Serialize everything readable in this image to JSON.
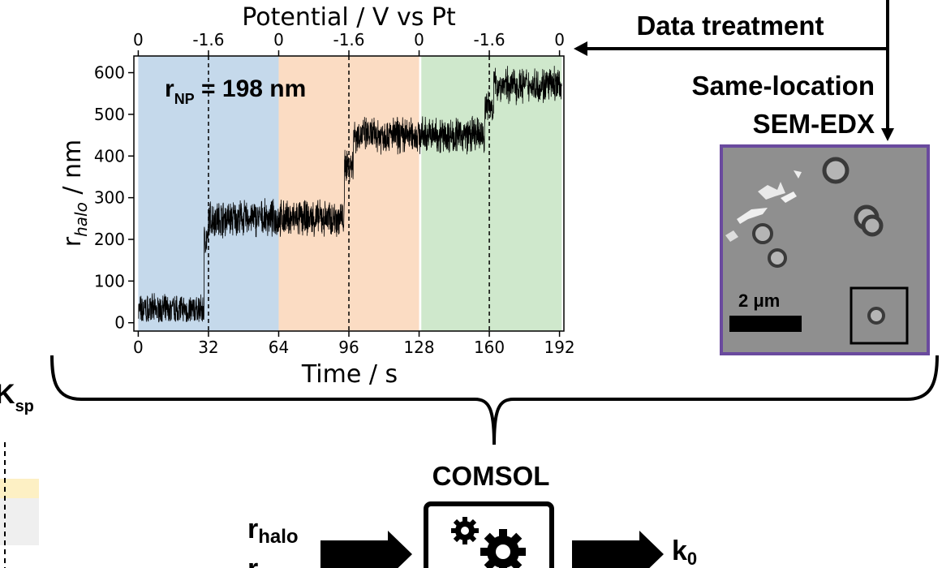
{
  "chart_data": {
    "type": "line",
    "title": "",
    "xlabel": "Time / s",
    "ylabel_main": "r",
    "ylabel_sub": "halo",
    "ylabel_unit": " / nm",
    "top_axis_label": "Potential / V vs Pt",
    "xlim": [
      -2,
      194
    ],
    "ylim": [
      -20,
      640
    ],
    "x_ticks": [
      0,
      32,
      64,
      96,
      128,
      160,
      192
    ],
    "x_tick_labels": [
      "0",
      "32",
      "64",
      "96",
      "128",
      "160",
      "192"
    ],
    "y_ticks": [
      0,
      100,
      200,
      300,
      400,
      500,
      600
    ],
    "y_tick_labels": [
      "0",
      "100",
      "200",
      "300",
      "400",
      "500",
      "600"
    ],
    "top_ticks": [
      0,
      32,
      64,
      96,
      128,
      160,
      192
    ],
    "top_tick_labels": [
      "0",
      "-1.6",
      "0",
      "-1.6",
      "0",
      "-1.6",
      "0"
    ],
    "shaded_regions": [
      {
        "x0": 0,
        "x1": 64,
        "color": "#c5d9eb"
      },
      {
        "x0": 64,
        "x1": 128,
        "color": "#fbdcc3"
      },
      {
        "x0": 129,
        "x1": 193,
        "color": "#cfe8cc"
      }
    ],
    "dashed_lines_x": [
      32,
      96,
      160
    ],
    "annotation_main": "r",
    "annotation_sub": "NP",
    "annotation_value": " = 198 nm",
    "series": [
      {
        "name": "r_halo",
        "color": "#000000",
        "segments": [
          {
            "x0": 0,
            "x1": 30,
            "mean": 30,
            "noise": 30
          },
          {
            "x0": 30,
            "x1": 32,
            "mean": 200,
            "noise": 30
          },
          {
            "x0": 32,
            "x1": 94,
            "mean": 250,
            "noise": 35
          },
          {
            "x0": 94,
            "x1": 98,
            "mean": 380,
            "noise": 35
          },
          {
            "x0": 98,
            "x1": 158,
            "mean": 450,
            "noise": 35
          },
          {
            "x0": 158,
            "x1": 162,
            "mean": 520,
            "noise": 35
          },
          {
            "x0": 162,
            "x1": 193,
            "mean": 570,
            "noise": 35
          }
        ]
      }
    ]
  },
  "labels": {
    "data_treatment": "Data treatment",
    "same_location": "Same-location",
    "sem_edx": "SEM-EDX",
    "scale_bar": "2 μm",
    "comsol": "COMSOL",
    "input_main": "r",
    "input_sub": "halo",
    "input2_main": "r",
    "output_main": "k",
    "output_sub": "0",
    "ksp_main": "K",
    "ksp_sub": "sp"
  },
  "colors": {
    "sem_border": "#6a4a9e",
    "sem_background": "#8f8f8f",
    "left_yellow": "#fdf0c4",
    "left_gray": "#efefef"
  }
}
